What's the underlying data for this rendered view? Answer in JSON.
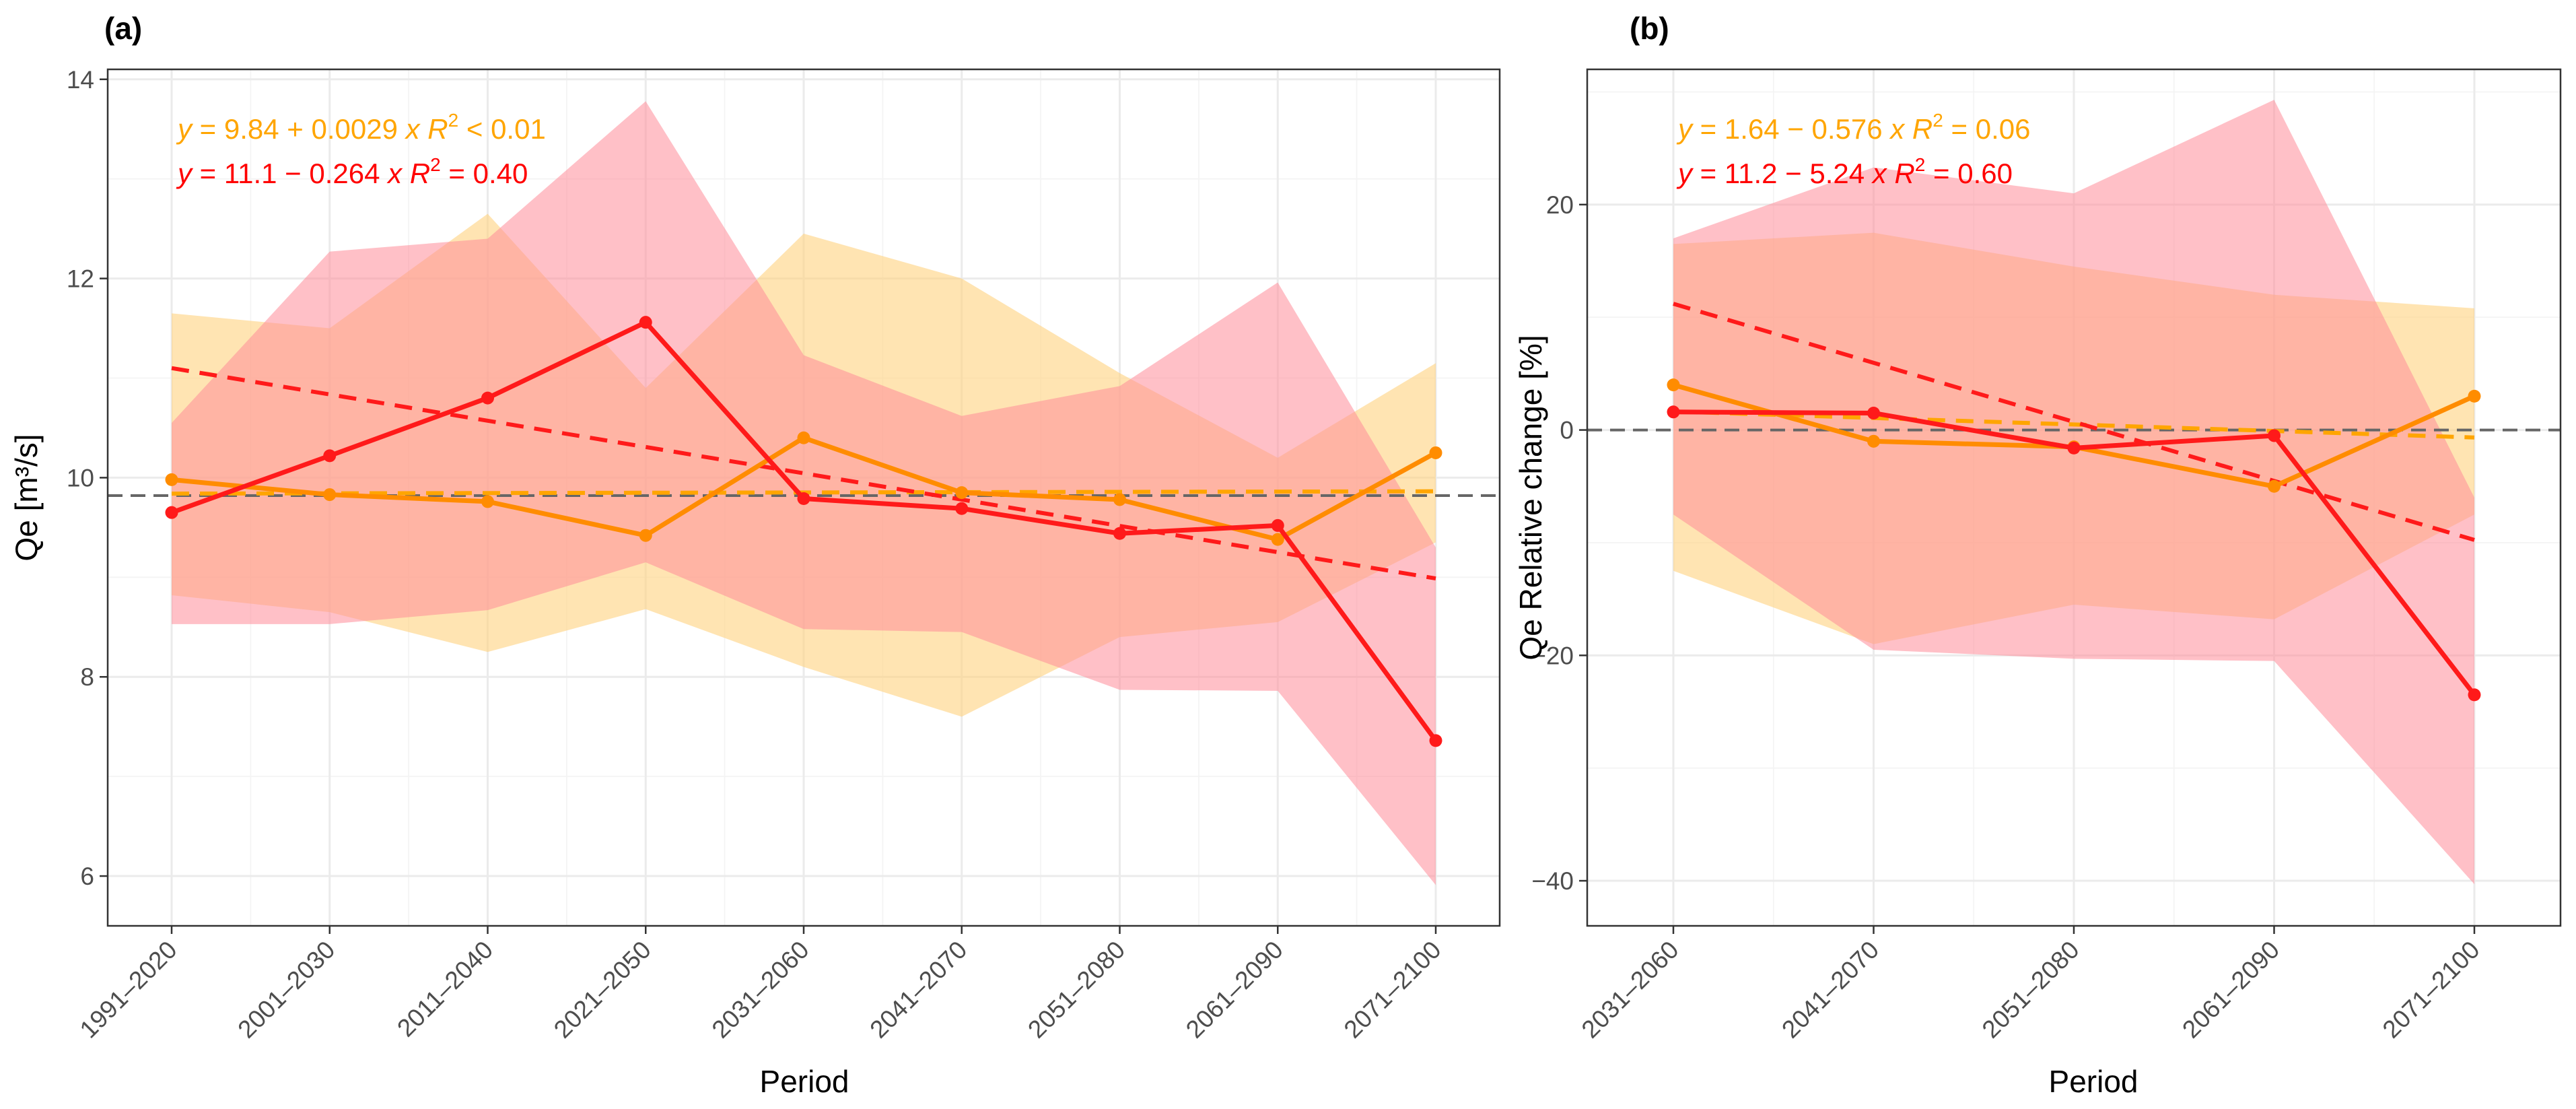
{
  "chart_data": [
    {
      "panel": "(a)",
      "type": "line",
      "xlabel": "Period",
      "ylabel": "Qe [m³/s]",
      "categories": [
        "1991–2020",
        "2001–2030",
        "2011–2040",
        "2021–2050",
        "2031–2060",
        "2041–2070",
        "2051–2080",
        "2061–2090",
        "2071–2100"
      ],
      "ylim": [
        5.5,
        14.1
      ],
      "yticks": [
        6,
        8,
        10,
        12,
        14
      ],
      "reference_line": 9.82,
      "series": [
        {
          "name": "orange",
          "color": "#ff8c00",
          "band_color": "#ffd27f",
          "values": [
            9.98,
            9.83,
            9.76,
            9.42,
            10.4,
            9.85,
            9.78,
            9.38,
            10.25
          ],
          "upper": [
            11.65,
            11.5,
            12.65,
            10.9,
            12.45,
            12.0,
            11.05,
            10.2,
            11.15
          ],
          "lower": [
            8.82,
            8.65,
            8.25,
            8.68,
            8.1,
            7.6,
            8.4,
            8.55,
            9.35
          ],
          "trend": [
            9.84,
            9.8429
          ],
          "equation": {
            "prefix": "y",
            "mid": " = 9.84 + 0.0029 ",
            "x": "x",
            "r": "R",
            "exp": "2",
            "tail": " < 0.01"
          }
        },
        {
          "name": "red",
          "color": "#ff1a1a",
          "band_color": "#ff8c99",
          "values": [
            9.65,
            10.22,
            10.8,
            11.56,
            9.79,
            9.69,
            9.44,
            9.52,
            7.36
          ],
          "upper": [
            10.55,
            12.27,
            12.4,
            13.78,
            11.23,
            10.62,
            10.92,
            11.96,
            9.3
          ],
          "lower": [
            8.53,
            8.53,
            8.67,
            9.15,
            8.48,
            8.45,
            7.87,
            7.86,
            5.91
          ],
          "trend": [
            11.1,
            10.836
          ],
          "equation": {
            "prefix": "y",
            "mid": " = 11.1 − 0.264 ",
            "x": "x",
            "r": "R",
            "exp": "2",
            "tail": " = 0.40"
          }
        }
      ]
    },
    {
      "panel": "(b)",
      "type": "line",
      "xlabel": "Period",
      "ylabel": "Qe Relative change [%]",
      "categories": [
        "2031–2060",
        "2041–2070",
        "2051–2080",
        "2061–2090",
        "2071–2100"
      ],
      "ylim": [
        -44,
        32
      ],
      "yticks": [
        -40,
        -20,
        0,
        20
      ],
      "reference_line": 0,
      "series": [
        {
          "name": "orange",
          "color": "#ff8c00",
          "band_color": "#ffd27f",
          "values": [
            4.0,
            -1.0,
            -1.5,
            -5.0,
            3.0
          ],
          "upper": [
            16.5,
            17.5,
            14.5,
            12.0,
            10.8
          ],
          "lower": [
            -12.5,
            -19.0,
            -15.5,
            -16.8,
            -7.5
          ],
          "trend": [
            1.64,
            1.064
          ],
          "equation": {
            "prefix": "y",
            "mid": " = 1.64 − 0.576 ",
            "x": "x",
            "r": "R",
            "exp": "2",
            "tail": " = 0.06"
          }
        },
        {
          "name": "red",
          "color": "#ff1a1a",
          "band_color": "#ff8c99",
          "values": [
            1.6,
            1.5,
            -1.6,
            -0.5,
            -23.5
          ],
          "upper": [
            17.0,
            23.3,
            21.0,
            29.3,
            -6.0
          ],
          "lower": [
            -7.5,
            -19.5,
            -20.3,
            -20.5,
            -40.3
          ],
          "trend": [
            11.2,
            5.96
          ],
          "equation": {
            "prefix": "y",
            "mid": " = 11.2 − 5.24 ",
            "x": "x",
            "r": "R",
            "exp": "2",
            "tail": " = 0.60"
          }
        }
      ]
    }
  ]
}
